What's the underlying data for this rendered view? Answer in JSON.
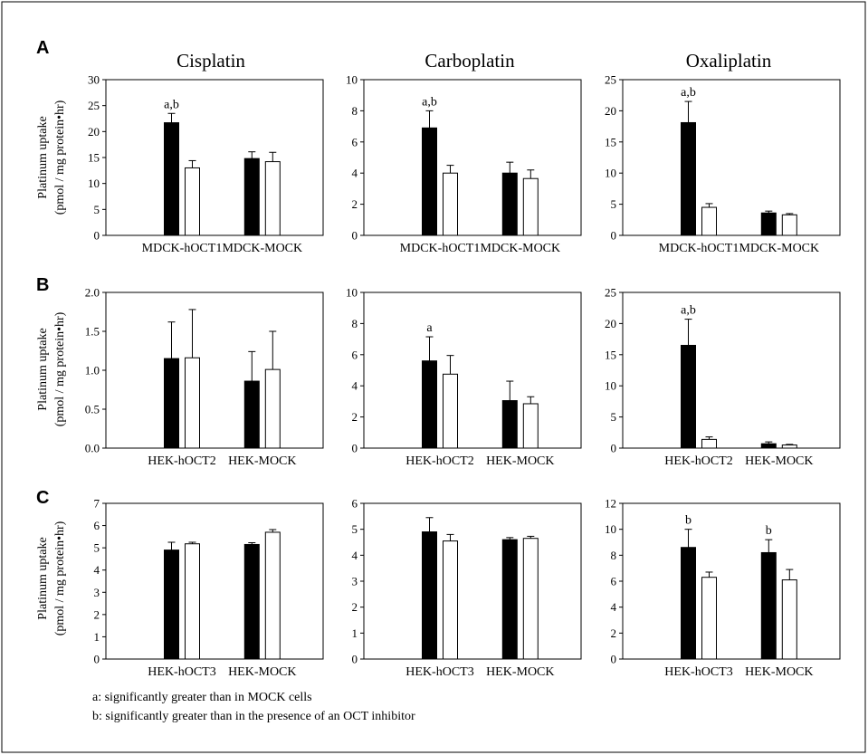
{
  "panel_letters": [
    "A",
    "B",
    "C"
  ],
  "column_titles": [
    "Cisplatin",
    "Carboplatin",
    "Oxaliplatin"
  ],
  "ylabel_line1": "Platinum uptake",
  "ylabel_line2": "(pmol / mg protein•hr)",
  "footnotes": [
    "a: significantly greater than in MOCK cells",
    "b: significantly greater than in the presence of an OCT inhibitor"
  ],
  "chart_data": [
    {
      "type": "bar",
      "row": 0,
      "col": 0,
      "panel": "A",
      "title": "Cisplatin",
      "categories": [
        "MDCK-hOCT1",
        "MDCK-MOCK"
      ],
      "ylim": [
        0,
        30
      ],
      "yticks": [
        0,
        5,
        10,
        15,
        20,
        25,
        30
      ],
      "series": [
        {
          "color": "#000000",
          "values": [
            21.7,
            14.8
          ],
          "errors": [
            1.8,
            1.3
          ]
        },
        {
          "color": "#ffffff",
          "values": [
            13.0,
            14.2
          ],
          "errors": [
            1.4,
            1.8
          ]
        }
      ],
      "annotations": [
        {
          "category": 0,
          "series": 0,
          "text": "a,b"
        }
      ]
    },
    {
      "type": "bar",
      "row": 0,
      "col": 1,
      "panel": "A",
      "title": "Carboplatin",
      "categories": [
        "MDCK-hOCT1",
        "MDCK-MOCK"
      ],
      "ylim": [
        0,
        10
      ],
      "yticks": [
        0,
        2,
        4,
        6,
        8,
        10
      ],
      "series": [
        {
          "color": "#000000",
          "values": [
            6.9,
            4.0
          ],
          "errors": [
            1.1,
            0.7
          ]
        },
        {
          "color": "#ffffff",
          "values": [
            4.0,
            3.65
          ],
          "errors": [
            0.5,
            0.55
          ]
        }
      ],
      "annotations": [
        {
          "category": 0,
          "series": 0,
          "text": "a,b"
        }
      ]
    },
    {
      "type": "bar",
      "row": 0,
      "col": 2,
      "panel": "A",
      "title": "Oxaliplatin",
      "categories": [
        "MDCK-hOCT1",
        "MDCK-MOCK"
      ],
      "ylim": [
        0,
        25
      ],
      "yticks": [
        0,
        5,
        10,
        15,
        20,
        25
      ],
      "series": [
        {
          "color": "#000000",
          "values": [
            18.1,
            3.6
          ],
          "errors": [
            3.4,
            0.3
          ]
        },
        {
          "color": "#ffffff",
          "values": [
            4.5,
            3.3
          ],
          "errors": [
            0.6,
            0.2
          ]
        }
      ],
      "annotations": [
        {
          "category": 0,
          "series": 0,
          "text": "a,b"
        }
      ]
    },
    {
      "type": "bar",
      "row": 1,
      "col": 0,
      "panel": "B",
      "title": "",
      "categories": [
        "HEK-hOCT2",
        "HEK-MOCK"
      ],
      "ylim": [
        0,
        2.0
      ],
      "yticks": [
        0.0,
        0.5,
        1.0,
        1.5,
        2.0
      ],
      "tick_decimals": 1,
      "series": [
        {
          "color": "#000000",
          "values": [
            1.15,
            0.86
          ],
          "errors": [
            0.47,
            0.38
          ]
        },
        {
          "color": "#ffffff",
          "values": [
            1.16,
            1.01
          ],
          "errors": [
            0.62,
            0.49
          ]
        }
      ],
      "annotations": []
    },
    {
      "type": "bar",
      "row": 1,
      "col": 1,
      "panel": "B",
      "title": "",
      "categories": [
        "HEK-hOCT2",
        "HEK-MOCK"
      ],
      "ylim": [
        0,
        10
      ],
      "yticks": [
        0,
        2,
        4,
        6,
        8,
        10
      ],
      "series": [
        {
          "color": "#000000",
          "values": [
            5.6,
            3.05
          ],
          "errors": [
            1.55,
            1.25
          ]
        },
        {
          "color": "#ffffff",
          "values": [
            4.75,
            2.85
          ],
          "errors": [
            1.2,
            0.45
          ]
        }
      ],
      "annotations": [
        {
          "category": 0,
          "series": 0,
          "text": "a"
        }
      ]
    },
    {
      "type": "bar",
      "row": 1,
      "col": 2,
      "panel": "B",
      "title": "",
      "categories": [
        "HEK-hOCT2",
        "HEK-MOCK"
      ],
      "ylim": [
        0,
        25
      ],
      "yticks": [
        0,
        5,
        10,
        15,
        20,
        25
      ],
      "series": [
        {
          "color": "#000000",
          "values": [
            16.5,
            0.7
          ],
          "errors": [
            4.2,
            0.3
          ]
        },
        {
          "color": "#ffffff",
          "values": [
            1.4,
            0.5
          ],
          "errors": [
            0.4,
            0.1
          ]
        }
      ],
      "annotations": [
        {
          "category": 0,
          "series": 0,
          "text": "a,b"
        }
      ]
    },
    {
      "type": "bar",
      "row": 2,
      "col": 0,
      "panel": "C",
      "title": "",
      "categories": [
        "HEK-hOCT3",
        "HEK-MOCK"
      ],
      "ylim": [
        0,
        7
      ],
      "yticks": [
        0,
        1,
        2,
        3,
        4,
        5,
        6,
        7
      ],
      "series": [
        {
          "color": "#000000",
          "values": [
            4.9,
            5.15
          ],
          "errors": [
            0.35,
            0.08
          ]
        },
        {
          "color": "#ffffff",
          "values": [
            5.18,
            5.7
          ],
          "errors": [
            0.07,
            0.12
          ]
        }
      ],
      "annotations": []
    },
    {
      "type": "bar",
      "row": 2,
      "col": 1,
      "panel": "C",
      "title": "",
      "categories": [
        "HEK-hOCT3",
        "HEK-MOCK"
      ],
      "ylim": [
        0,
        6
      ],
      "yticks": [
        0,
        1,
        2,
        3,
        4,
        5,
        6
      ],
      "series": [
        {
          "color": "#000000",
          "values": [
            4.9,
            4.6
          ],
          "errors": [
            0.55,
            0.08
          ]
        },
        {
          "color": "#ffffff",
          "values": [
            4.55,
            4.65
          ],
          "errors": [
            0.25,
            0.08
          ]
        }
      ],
      "annotations": []
    },
    {
      "type": "bar",
      "row": 2,
      "col": 2,
      "panel": "C",
      "title": "",
      "categories": [
        "HEK-hOCT3",
        "HEK-MOCK"
      ],
      "ylim": [
        0,
        12
      ],
      "yticks": [
        0,
        2,
        4,
        6,
        8,
        10,
        12
      ],
      "series": [
        {
          "color": "#000000",
          "values": [
            8.6,
            8.2
          ],
          "errors": [
            1.4,
            1.0
          ]
        },
        {
          "color": "#ffffff",
          "values": [
            6.3,
            6.1
          ],
          "errors": [
            0.4,
            0.8
          ]
        }
      ],
      "annotations": [
        {
          "category": 0,
          "series": 0,
          "text": "b"
        },
        {
          "category": 1,
          "series": 0,
          "text": "b"
        }
      ]
    }
  ]
}
